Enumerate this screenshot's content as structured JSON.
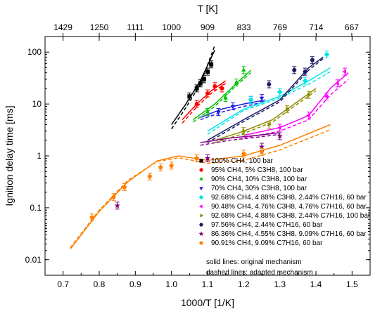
{
  "chart_data": {
    "type": "scatter",
    "xlabel": "1000/T [1/K]",
    "ylabel": "Ignition delay time [ms]",
    "top_xlabel": "T [K]",
    "xlim": [
      0.65,
      1.55
    ],
    "ylim": [
      0.005,
      200
    ],
    "y_scale": "log",
    "x_ticks": [
      0.7,
      0.8,
      0.9,
      1.0,
      1.1,
      1.2,
      1.3,
      1.4,
      1.5
    ],
    "x_tick_labels": [
      "0.7",
      "0.8",
      "0.9",
      "1.0",
      "1.1",
      "1.2",
      "1.3",
      "1.4",
      "1.5"
    ],
    "y_ticks": [
      0.01,
      0.1,
      1,
      10,
      100
    ],
    "y_tick_labels": [
      "0.01",
      "0.1",
      "1",
      "10",
      "100"
    ],
    "top_ticks": [
      1429,
      1250,
      1111,
      1000,
      909,
      833,
      769,
      714,
      667
    ],
    "top_tick_labels": [
      "1429",
      "1250",
      "1111",
      "1000",
      "909",
      "833",
      "769",
      "714",
      "667"
    ],
    "grid": false,
    "legend_position": "lower-right",
    "notes": [
      "solid lines: original mechanism",
      "dashed lines: adapted mechanism"
    ],
    "series": [
      {
        "name": "100% CH4, 100 bar",
        "color": "#000000",
        "marker": "square",
        "points": [
          [
            1.05,
            14
          ],
          [
            1.07,
            20
          ],
          [
            1.08,
            25
          ],
          [
            1.09,
            30
          ],
          [
            1.1,
            42
          ],
          [
            1.11,
            58
          ]
        ],
        "sim": [
          [
            1.0,
            4
          ],
          [
            1.04,
            10
          ],
          [
            1.08,
            28
          ],
          [
            1.12,
            110
          ]
        ],
        "sim_adapted": [
          [
            1.0,
            3.3
          ],
          [
            1.04,
            8.5
          ],
          [
            1.08,
            24
          ],
          [
            1.12,
            135
          ]
        ]
      },
      {
        "name": "95% CH4, 5% C3H8, 100 bar",
        "color": "#ff0000",
        "marker": "circle",
        "points": [
          [
            1.07,
            10
          ],
          [
            1.1,
            16
          ],
          [
            1.12,
            22
          ],
          [
            1.14,
            20
          ]
        ],
        "sim": [
          [
            1.03,
            5
          ],
          [
            1.07,
            10
          ],
          [
            1.11,
            18
          ],
          [
            1.15,
            28
          ]
        ],
        "sim_adapted": [
          [
            1.03,
            4.3
          ],
          [
            1.07,
            8.8
          ],
          [
            1.11,
            16
          ],
          [
            1.15,
            25
          ]
        ]
      },
      {
        "name": "90% CH4, 10% C3H8, 100 bar",
        "color": "#00c000",
        "marker": "triangle-up",
        "points": [
          [
            1.1,
            7
          ],
          [
            1.15,
            13
          ],
          [
            1.18,
            26
          ],
          [
            1.2,
            45
          ]
        ],
        "sim": [
          [
            1.06,
            5
          ],
          [
            1.12,
            10
          ],
          [
            1.18,
            25
          ],
          [
            1.22,
            45
          ]
        ],
        "sim_adapted": [
          [
            1.06,
            4.5
          ],
          [
            1.12,
            9
          ],
          [
            1.18,
            23
          ],
          [
            1.22,
            40
          ]
        ]
      },
      {
        "name": "70% CH4, 30% C3H8, 100 bar",
        "color": "#1a1ae6",
        "marker": "triangle-down",
        "points": [
          [
            1.13,
            7
          ],
          [
            1.17,
            9
          ],
          [
            1.22,
            12
          ],
          [
            1.25,
            13
          ]
        ],
        "sim": [
          [
            1.08,
            5.5
          ],
          [
            1.14,
            8
          ],
          [
            1.2,
            10
          ],
          [
            1.26,
            12
          ]
        ],
        "sim_adapted": [
          [
            1.08,
            5
          ],
          [
            1.14,
            7
          ],
          [
            1.2,
            9
          ],
          [
            1.26,
            11
          ]
        ]
      },
      {
        "name": "92.68% CH4, 4.88% C3H8, 2.44% C7H16, 60 bar",
        "color": "#00e5e5",
        "marker": "diamond",
        "points": [
          [
            1.22,
            12
          ],
          [
            1.3,
            17
          ],
          [
            1.37,
            28
          ],
          [
            1.43,
            90
          ]
        ],
        "sim": [
          [
            1.1,
            3
          ],
          [
            1.2,
            8
          ],
          [
            1.3,
            14
          ],
          [
            1.38,
            28
          ],
          [
            1.44,
            50
          ]
        ],
        "sim_adapted": [
          [
            1.1,
            2.6
          ],
          [
            1.2,
            7.5
          ],
          [
            1.3,
            13
          ],
          [
            1.38,
            24
          ],
          [
            1.44,
            42
          ]
        ]
      },
      {
        "name": "90.48% CH4, 4.76% C3H8, 4.76% C7H16, 60 bar",
        "color": "#ff00ff",
        "marker": "triangle-left",
        "points": [
          [
            1.3,
            3.5
          ],
          [
            1.38,
            6
          ],
          [
            1.43,
            14
          ],
          [
            1.46,
            25
          ],
          [
            1.48,
            42
          ]
        ],
        "sim": [
          [
            1.2,
            2.5
          ],
          [
            1.3,
            3.5
          ],
          [
            1.38,
            6
          ],
          [
            1.44,
            20
          ],
          [
            1.49,
            40
          ]
        ],
        "sim_adapted": [
          [
            1.2,
            2.2
          ],
          [
            1.3,
            3
          ],
          [
            1.38,
            5
          ],
          [
            1.44,
            15
          ],
          [
            1.49,
            30
          ]
        ]
      },
      {
        "name": "92.68% CH4, 4.88% C3H8, 2.44% C7H16, 100 bar",
        "color": "#8b8b00",
        "marker": "triangle-right",
        "points": [
          [
            1.2,
            3
          ],
          [
            1.27,
            4
          ],
          [
            1.32,
            8
          ],
          [
            1.38,
            15
          ]
        ],
        "sim": [
          [
            1.12,
            2
          ],
          [
            1.2,
            3
          ],
          [
            1.28,
            5
          ],
          [
            1.34,
            10
          ],
          [
            1.4,
            20
          ]
        ],
        "sim_adapted": [
          [
            1.12,
            1.8
          ],
          [
            1.2,
            2.7
          ],
          [
            1.28,
            4.5
          ],
          [
            1.34,
            9
          ],
          [
            1.4,
            18
          ]
        ]
      },
      {
        "name": "97.56% CH4, 2.44% C7H16, 60 bar",
        "color": "#1a1a66",
        "marker": "hexagon",
        "points": [
          [
            1.27,
            24
          ],
          [
            1.34,
            45
          ],
          [
            1.37,
            42
          ],
          [
            1.39,
            70
          ]
        ],
        "sim": [
          [
            1.1,
            2
          ],
          [
            1.2,
            5
          ],
          [
            1.3,
            12
          ],
          [
            1.38,
            50
          ],
          [
            1.42,
            80
          ]
        ],
        "sim_adapted": [
          [
            1.1,
            1.8
          ],
          [
            1.2,
            4.6
          ],
          [
            1.3,
            11
          ],
          [
            1.38,
            45
          ],
          [
            1.42,
            75
          ]
        ]
      },
      {
        "name": "86.36% CH4, 4.55% C3H8, 9.09% C7H16, 60 bar",
        "color": "#800080",
        "marker": "star",
        "points": [
          [
            0.85,
            0.11
          ],
          [
            1.1,
            0.9
          ],
          [
            1.25,
            1.5
          ],
          [
            1.3,
            2.4
          ]
        ],
        "sim": [
          [
            1.08,
            1.8
          ],
          [
            1.16,
            2.2
          ],
          [
            1.24,
            2.5
          ],
          [
            1.3,
            2.8
          ]
        ],
        "sim_adapted": [
          [
            1.08,
            1.6
          ],
          [
            1.16,
            2
          ],
          [
            1.24,
            2.3
          ],
          [
            1.3,
            2.6
          ]
        ]
      },
      {
        "name": "90.91% CH4, 9.09% C7H16, 60 bar",
        "color": "#ff8000",
        "marker": "pentagon",
        "points": [
          [
            0.78,
            0.065
          ],
          [
            0.84,
            0.16
          ],
          [
            0.87,
            0.25
          ],
          [
            0.94,
            0.4
          ],
          [
            0.97,
            0.6
          ],
          [
            1.0,
            0.65
          ],
          [
            1.07,
            0.9
          ],
          [
            1.2,
            1.1
          ],
          [
            1.25,
            1.2
          ]
        ],
        "sim": [
          [
            0.72,
            0.016
          ],
          [
            0.8,
            0.085
          ],
          [
            0.88,
            0.32
          ],
          [
            0.96,
            0.8
          ],
          [
            1.02,
            1.0
          ],
          [
            1.1,
            0.82
          ],
          [
            1.2,
            1.0
          ],
          [
            1.3,
            1.6
          ],
          [
            1.44,
            4.0
          ]
        ],
        "sim_adapted": [
          [
            0.72,
            0.017
          ],
          [
            0.8,
            0.09
          ],
          [
            0.88,
            0.34
          ],
          [
            0.96,
            0.78
          ],
          [
            1.02,
            0.92
          ],
          [
            1.1,
            0.72
          ],
          [
            1.2,
            0.82
          ],
          [
            1.3,
            1.3
          ],
          [
            1.44,
            3.2
          ]
        ]
      }
    ]
  }
}
